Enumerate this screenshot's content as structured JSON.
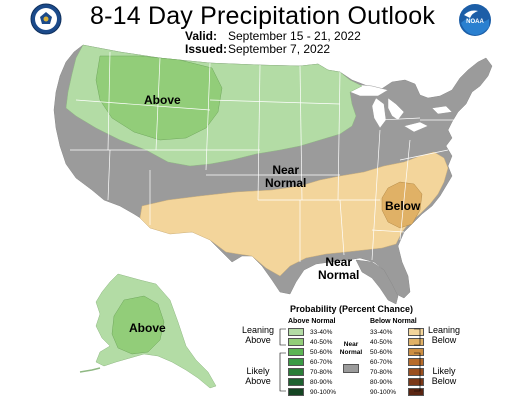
{
  "header": {
    "title": "8-14 Day Precipitation Outlook",
    "valid_label": "Valid:",
    "valid_value": "September 15 - 21, 2022",
    "issued_label": "Issued:",
    "issued_value": "September 7, 2022",
    "logo_left": "doc-seal-icon",
    "logo_right": "noaa-logo-icon",
    "logo_right_text": "NOAA"
  },
  "map_labels": {
    "above_west": "Above",
    "near_normal_center": "Near\nNormal",
    "below_southeast": "Below",
    "near_normal_south": "Near\nNormal",
    "above_alaska": "Above"
  },
  "legend": {
    "title": "Probability (Percent Chance)",
    "above_header": "Above Normal",
    "below_header": "Below Normal",
    "near_normal_label": "Near\nNormal",
    "leaning_above": "Leaning\nAbove",
    "likely_above": "Likely\nAbove",
    "leaning_below": "Leaning\nBelow",
    "likely_below": "Likely\nBelow",
    "above_bins": [
      {
        "label": "33-40%",
        "color": "#b3dca5"
      },
      {
        "label": "40-50%",
        "color": "#92cd79"
      },
      {
        "label": "50-60%",
        "color": "#5cb454"
      },
      {
        "label": "60-70%",
        "color": "#3a9a45"
      },
      {
        "label": "70-80%",
        "color": "#2a7d38"
      },
      {
        "label": "80-90%",
        "color": "#1e6130"
      },
      {
        "label": "90-100%",
        "color": "#154523"
      }
    ],
    "below_bins": [
      {
        "label": "33-40%",
        "color": "#f3d59b"
      },
      {
        "label": "40-50%",
        "color": "#e0b166"
      },
      {
        "label": "50-60%",
        "color": "#cc8e42"
      },
      {
        "label": "60-70%",
        "color": "#b76b2a"
      },
      {
        "label": "70-80%",
        "color": "#9a4f1f"
      },
      {
        "label": "80-90%",
        "color": "#7a3818"
      },
      {
        "label": "90-100%",
        "color": "#5a2512"
      }
    ],
    "near_normal_color": "#9b9b9b"
  },
  "colors": {
    "near_normal": "#9b9b9b",
    "above_33_40": "#b3dca5",
    "above_40_50": "#92cd79",
    "below_33_40": "#f3d59b",
    "below_40_50": "#e0b166",
    "water": "#ffffff",
    "border": "#ffffff"
  }
}
